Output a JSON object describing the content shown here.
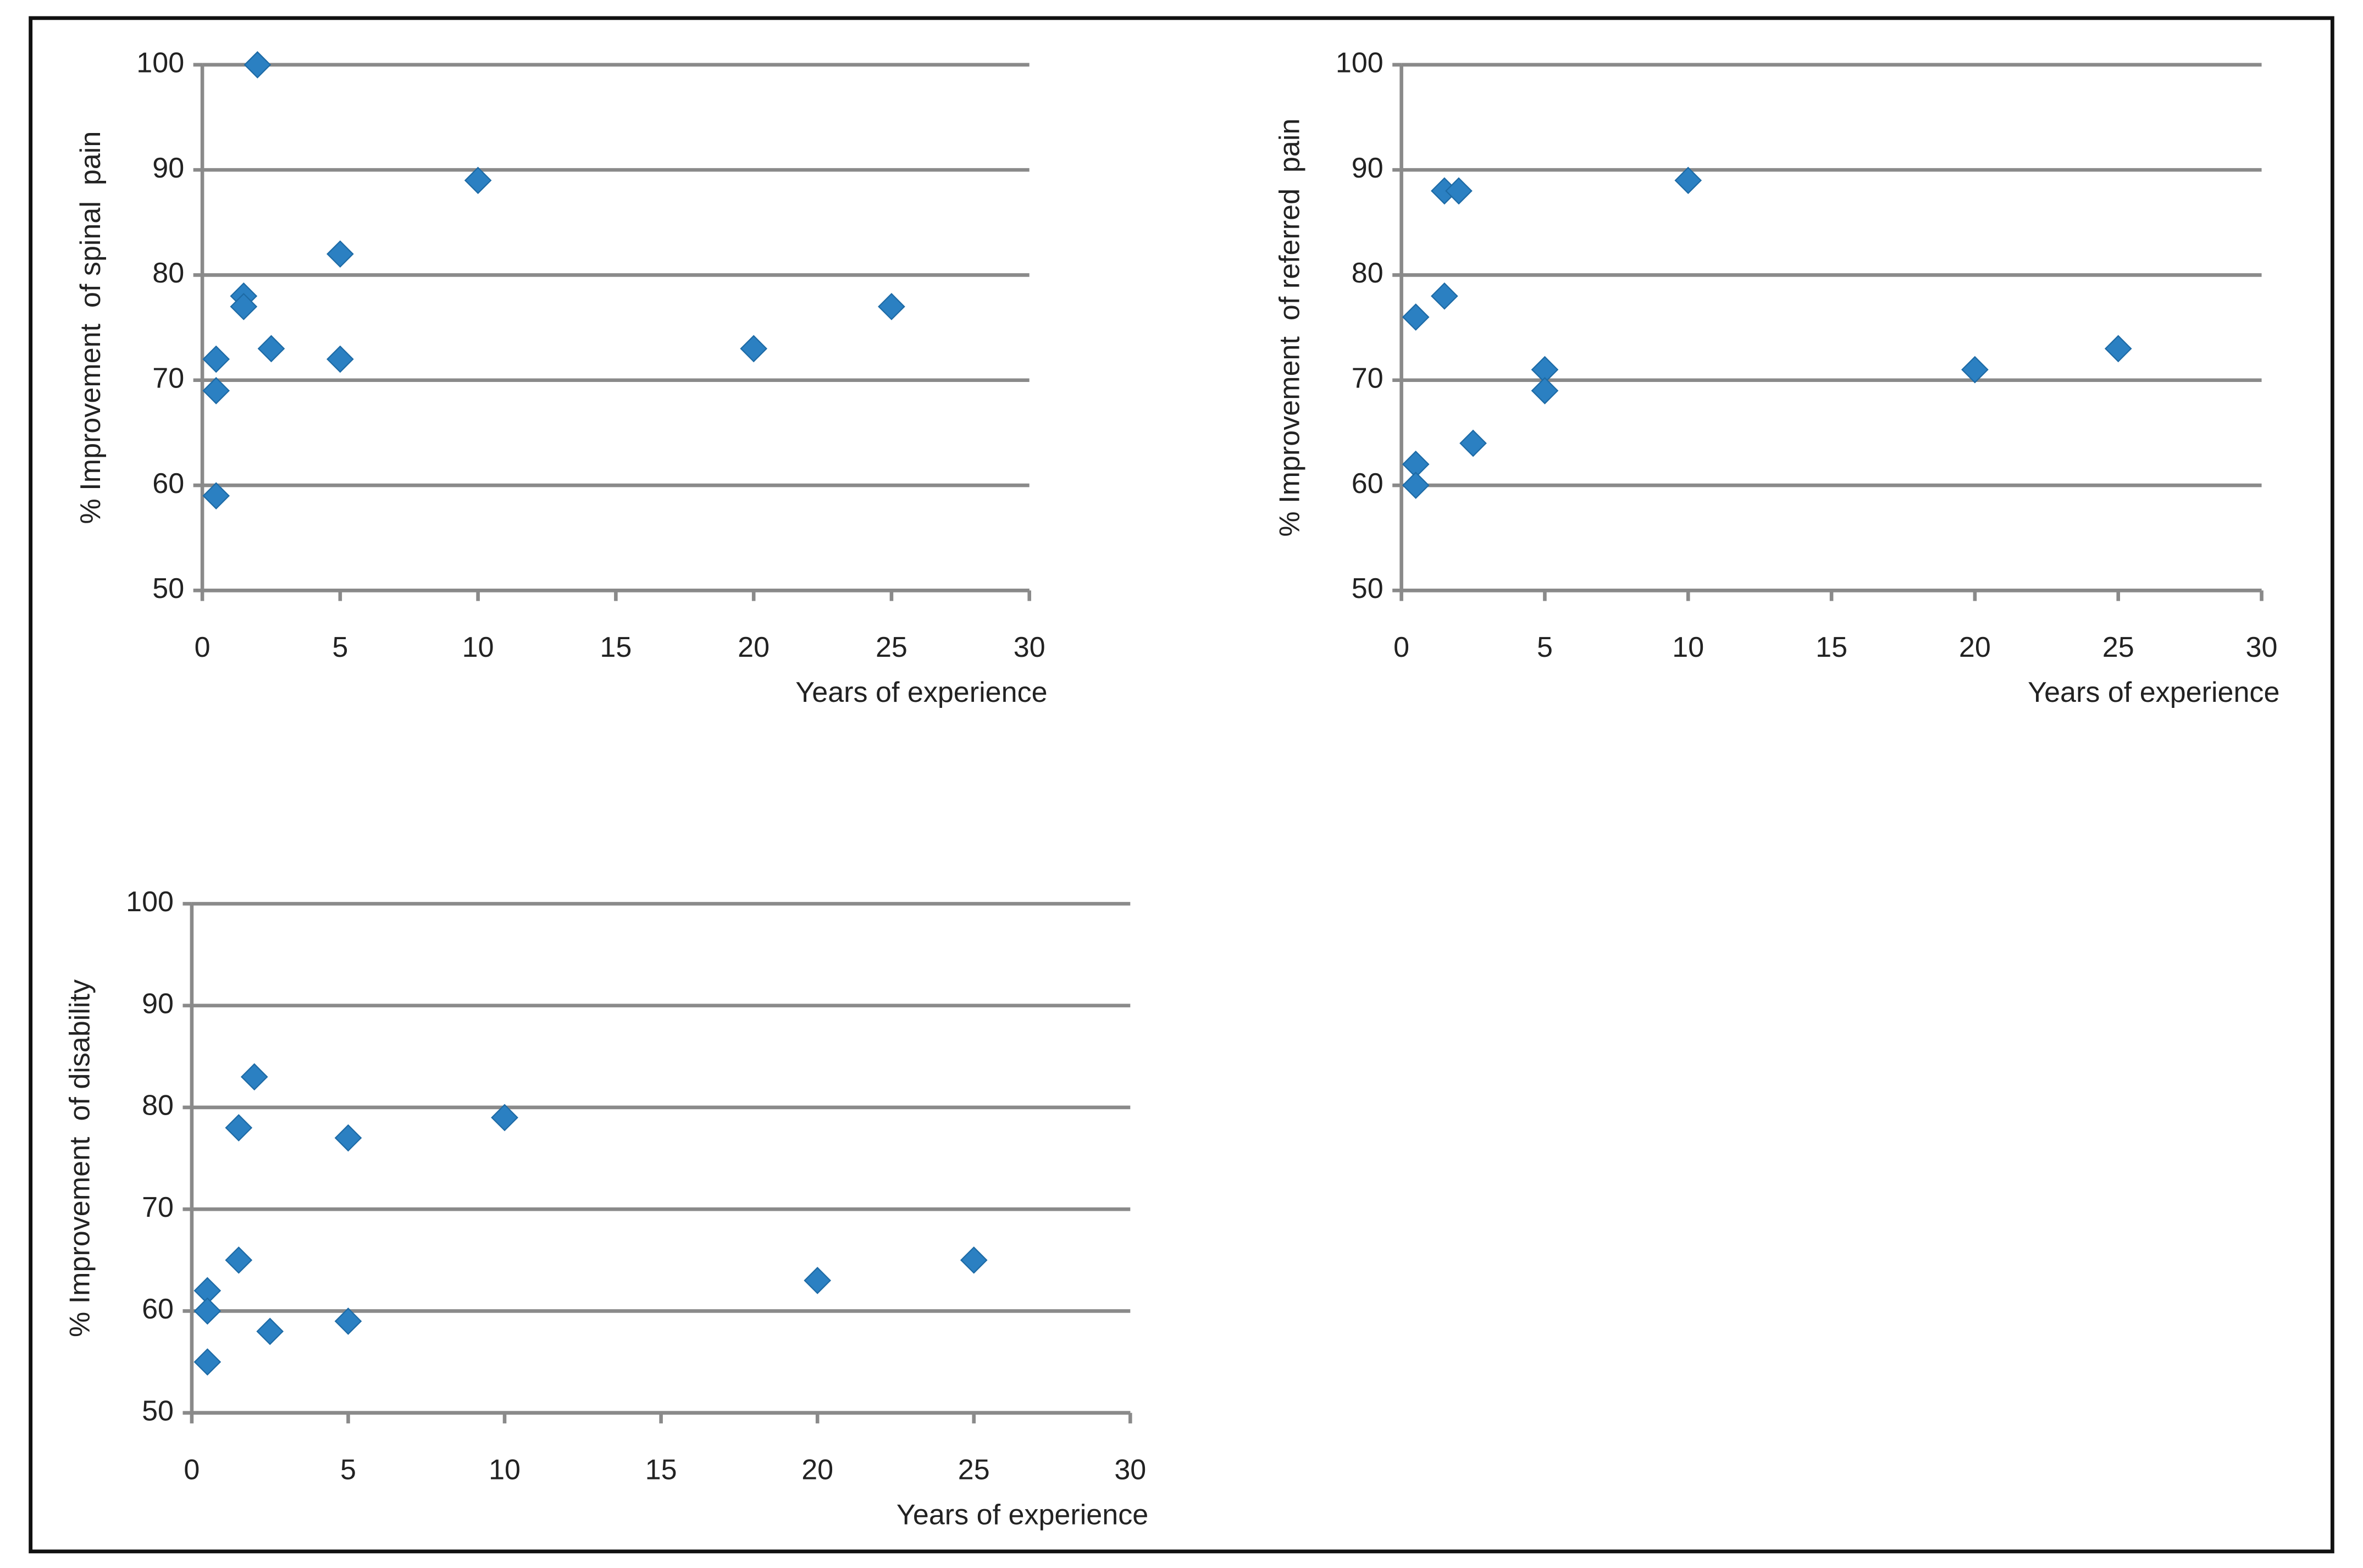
{
  "chart_data": [
    {
      "type": "scatter",
      "xlabel": "Years of experience",
      "ylabel": "% Improvement  of spinal  pain",
      "x": [
        2,
        10,
        5,
        1.5,
        1.5,
        2.5,
        0.5,
        5,
        0.5,
        0.5,
        20,
        25
      ],
      "values": [
        100,
        89,
        82,
        78,
        77,
        73,
        72,
        72,
        69,
        59,
        73,
        77
      ],
      "color": "#2b80c2",
      "xlim": [
        0,
        30
      ],
      "ylim": [
        50,
        100
      ],
      "xticks": [
        0,
        5,
        10,
        15,
        20,
        25,
        30
      ],
      "yticks": [
        50,
        60,
        70,
        80,
        90,
        100
      ],
      "grid": true
    },
    {
      "type": "scatter",
      "xlabel": "Years of experience",
      "ylabel": "% Improvement  of referred  pain",
      "x": [
        0.5,
        1.5,
        2,
        10,
        1.5,
        5,
        5,
        2.5,
        0.5,
        0.5,
        20,
        25
      ],
      "values": [
        76,
        88,
        88,
        89,
        78,
        71,
        69,
        64,
        62,
        60,
        71,
        73
      ],
      "color": "#2b80c2",
      "xlim": [
        0,
        30
      ],
      "ylim": [
        50,
        100
      ],
      "xticks": [
        0,
        5,
        10,
        15,
        20,
        25,
        30
      ],
      "yticks": [
        50,
        60,
        70,
        80,
        90,
        100
      ],
      "grid": true
    },
    {
      "type": "scatter",
      "xlabel": "Years of experience",
      "ylabel": "% Improvement  of disability",
      "x": [
        2,
        1.5,
        5,
        10,
        1.5,
        0.5,
        0.5,
        0.5,
        2.5,
        5,
        20,
        25
      ],
      "values": [
        83,
        78,
        77,
        79,
        65,
        62,
        60,
        55,
        58,
        59,
        63,
        65
      ],
      "color": "#2b80c2",
      "xlim": [
        0,
        30
      ],
      "ylim": [
        50,
        100
      ],
      "xticks": [
        0,
        5,
        10,
        15,
        20,
        25,
        30
      ],
      "yticks": [
        50,
        60,
        70,
        80,
        90,
        100
      ],
      "grid": true
    }
  ]
}
